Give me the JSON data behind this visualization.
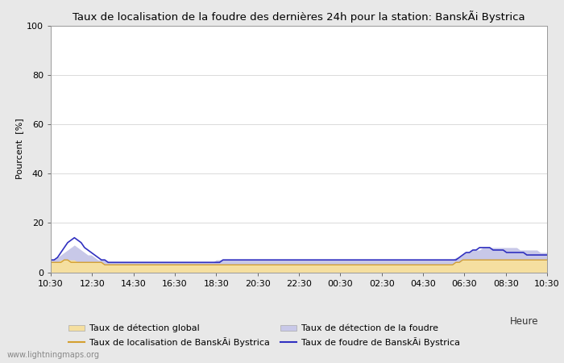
{
  "title": "Taux de localisation de la foudre des dernières 24h pour la station: BanskÃi Bystrica",
  "ylabel": "Pourcent  [%]",
  "xlabel": "Heure",
  "xlim": [
    0,
    24
  ],
  "ylim": [
    0,
    100
  ],
  "yticks": [
    0,
    20,
    40,
    60,
    80,
    100
  ],
  "xtick_labels": [
    "10:30",
    "12:30",
    "14:30",
    "16:30",
    "18:30",
    "20:30",
    "22:30",
    "00:30",
    "02:30",
    "04:30",
    "06:30",
    "08:30",
    "10:30"
  ],
  "xtick_positions": [
    0,
    2,
    4,
    6,
    8,
    10,
    12,
    14,
    16,
    18,
    20,
    22,
    24
  ],
  "watermark": "www.lightningmaps.org",
  "color_global_fill": "#f5dfa0",
  "color_lightning_fill": "#c8c8e8",
  "color_loc_line": "#d4a030",
  "color_foudre_line": "#3030c0",
  "bg_color": "#ffffff",
  "fig_bg_color": "#e8e8e8",
  "legend": [
    "Taux de détection global",
    "Taux de localisation de BanskÃi Bystrica",
    "Taux de détection de la foudre",
    "Taux de foudre de BanskÃi Bystrica"
  ],
  "global_detection": [
    4,
    4,
    4,
    5,
    5,
    5,
    5,
    5,
    4,
    4,
    4,
    4,
    4,
    4,
    4,
    4,
    3,
    3,
    3,
    3,
    3,
    3,
    3,
    3,
    3,
    3,
    3,
    3,
    3,
    3,
    3,
    3,
    3,
    3,
    3,
    3,
    3,
    3,
    3,
    3,
    3,
    3,
    3,
    3,
    3,
    3,
    3,
    3,
    3,
    3,
    3,
    3,
    3,
    3,
    3,
    3,
    3,
    3,
    3,
    3,
    3,
    3,
    3,
    3,
    3,
    3,
    3,
    3,
    3,
    3,
    3,
    3,
    3,
    3,
    3,
    3,
    3,
    3,
    3,
    3,
    3,
    3,
    3,
    3,
    3,
    3,
    3,
    3,
    3,
    3,
    3,
    3,
    3,
    3,
    3,
    3,
    3,
    3,
    3,
    3,
    3,
    3,
    3,
    3,
    3,
    3,
    3,
    3,
    3,
    3,
    3,
    3,
    3,
    3,
    3,
    3,
    3,
    3,
    3,
    3,
    4,
    4,
    5,
    5,
    5,
    5,
    5,
    5,
    5,
    5,
    5,
    5,
    5,
    5,
    5,
    5,
    5,
    5,
    5,
    5,
    5,
    5,
    5,
    5,
    5,
    5,
    5,
    5
  ],
  "lightning_detection": [
    5,
    5,
    6,
    7,
    8,
    9,
    10,
    11,
    10,
    9,
    8,
    7,
    7,
    6,
    5,
    5,
    5,
    4,
    4,
    4,
    4,
    4,
    4,
    4,
    4,
    4,
    4,
    4,
    4,
    4,
    4,
    4,
    4,
    4,
    4,
    4,
    4,
    4,
    4,
    4,
    4,
    4,
    4,
    4,
    4,
    4,
    4,
    4,
    4,
    5,
    5,
    5,
    5,
    5,
    5,
    5,
    5,
    5,
    5,
    5,
    5,
    5,
    5,
    5,
    5,
    5,
    5,
    5,
    5,
    5,
    5,
    5,
    5,
    5,
    5,
    5,
    5,
    5,
    5,
    5,
    5,
    5,
    5,
    5,
    5,
    5,
    5,
    5,
    5,
    5,
    5,
    5,
    5,
    5,
    5,
    5,
    5,
    5,
    5,
    5,
    5,
    5,
    5,
    5,
    5,
    5,
    5,
    5,
    5,
    5,
    5,
    5,
    5,
    5,
    5,
    5,
    5,
    5,
    5,
    5,
    6,
    6,
    7,
    8,
    8,
    9,
    9,
    9,
    10,
    10,
    10,
    10,
    10,
    10,
    10,
    10,
    10,
    10,
    10,
    9,
    9,
    9,
    9,
    9,
    9,
    8,
    8,
    8
  ],
  "loc_bystrica": [
    4,
    4,
    4,
    4,
    5,
    5,
    4,
    4,
    4,
    4,
    4,
    4,
    4,
    4,
    4,
    4,
    3,
    3,
    3,
    3,
    3,
    3,
    3,
    3,
    3,
    3,
    3,
    3,
    3,
    3,
    3,
    3,
    3,
    3,
    3,
    3,
    3,
    3,
    3,
    3,
    3,
    3,
    3,
    3,
    3,
    3,
    3,
    3,
    3,
    3,
    3,
    3,
    3,
    3,
    3,
    3,
    3,
    3,
    3,
    3,
    3,
    3,
    3,
    3,
    3,
    3,
    3,
    3,
    3,
    3,
    3,
    3,
    3,
    3,
    3,
    3,
    3,
    3,
    3,
    3,
    3,
    3,
    3,
    3,
    3,
    3,
    3,
    3,
    3,
    3,
    3,
    3,
    3,
    3,
    3,
    3,
    3,
    3,
    3,
    3,
    3,
    3,
    3,
    3,
    3,
    3,
    3,
    3,
    3,
    3,
    3,
    3,
    3,
    3,
    3,
    3,
    3,
    3,
    3,
    3,
    4,
    4,
    5,
    5,
    5,
    5,
    5,
    5,
    5,
    5,
    5,
    5,
    5,
    5,
    5,
    5,
    5,
    5,
    5,
    5,
    5,
    5,
    5,
    5,
    5,
    5,
    5,
    5
  ],
  "foudre_bystrica": [
    5,
    5,
    6,
    8,
    10,
    12,
    13,
    14,
    13,
    12,
    10,
    9,
    8,
    7,
    6,
    5,
    5,
    4,
    4,
    4,
    4,
    4,
    4,
    4,
    4,
    4,
    4,
    4,
    4,
    4,
    4,
    4,
    4,
    4,
    4,
    4,
    4,
    4,
    4,
    4,
    4,
    4,
    4,
    4,
    4,
    4,
    4,
    4,
    4,
    4,
    4,
    5,
    5,
    5,
    5,
    5,
    5,
    5,
    5,
    5,
    5,
    5,
    5,
    5,
    5,
    5,
    5,
    5,
    5,
    5,
    5,
    5,
    5,
    5,
    5,
    5,
    5,
    5,
    5,
    5,
    5,
    5,
    5,
    5,
    5,
    5,
    5,
    5,
    5,
    5,
    5,
    5,
    5,
    5,
    5,
    5,
    5,
    5,
    5,
    5,
    5,
    5,
    5,
    5,
    5,
    5,
    5,
    5,
    5,
    5,
    5,
    5,
    5,
    5,
    5,
    5,
    5,
    5,
    5,
    5,
    5,
    6,
    7,
    8,
    8,
    9,
    9,
    10,
    10,
    10,
    10,
    9,
    9,
    9,
    9,
    8,
    8,
    8,
    8,
    8,
    8,
    7,
    7,
    7,
    7,
    7,
    7,
    7
  ]
}
